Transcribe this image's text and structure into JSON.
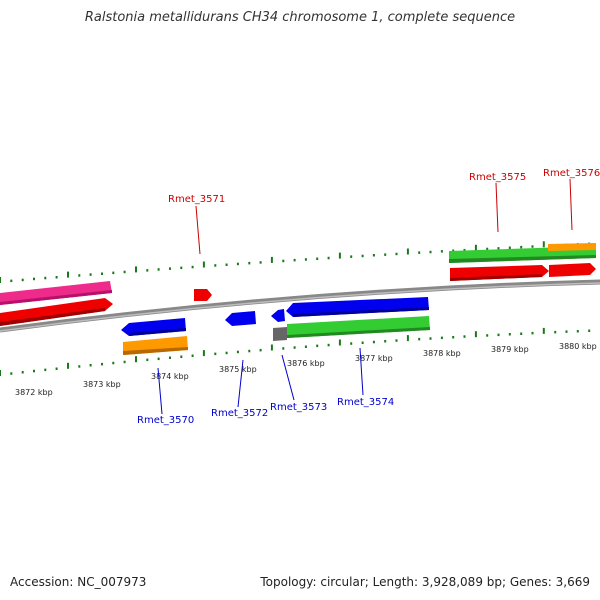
{
  "title": "Ralstonia metallidurans CH34 chromosome 1, complete sequence",
  "accession": "Accession: NC_007973",
  "summary": "Topology: circular; Length: 3,928,089 bp; Genes: 3,669",
  "colors": {
    "forward_label": "#cc0000",
    "reverse_label": "#0000cc",
    "tick": "#1a7a1a",
    "backbone": "#888888",
    "red": "#ee0000",
    "pink": "#ee2a8a",
    "blue": "#0000ee",
    "orange": "#ff9900",
    "green": "#33cc33",
    "gray": "#666666"
  },
  "kbp_labels": [
    "3872 kbp",
    "3873 kbp",
    "3874 kbp",
    "3875 kbp",
    "3876 kbp",
    "3877 kbp",
    "3878 kbp",
    "3879 kbp",
    "3880 kbp"
  ],
  "forward_genes": [
    "Rmet_3571",
    "Rmet_3575",
    "Rmet_3576"
  ],
  "reverse_genes": [
    "Rmet_3570",
    "Rmet_3572",
    "Rmet_3573",
    "Rmet_3574"
  ]
}
